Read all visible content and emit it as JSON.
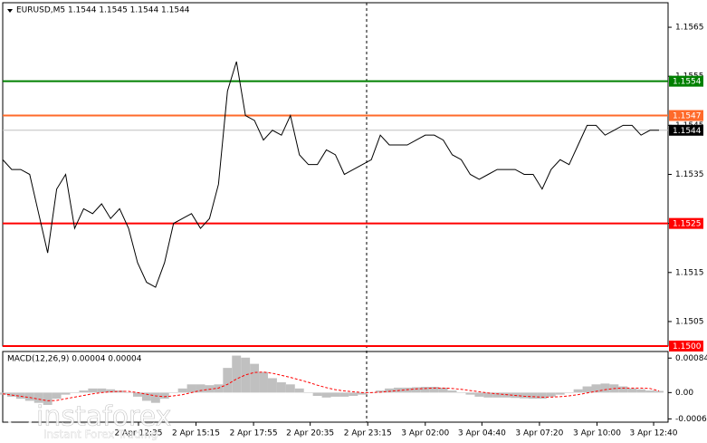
{
  "chart_data": [
    {
      "type": "line",
      "title": "EURUSD,M5  1.1544 1.1545 1.1544 1.1544",
      "series": [
        {
          "color": "#000000",
          "values": [
            1.1538,
            1.1536,
            1.1536,
            1.1535,
            1.1527,
            1.1519,
            1.1532,
            1.1535,
            1.1524,
            1.1528,
            1.1527,
            1.1529,
            1.1526,
            1.1528,
            1.1524,
            1.1517,
            1.1513,
            1.1512,
            1.1517,
            1.1525,
            1.1526,
            1.1527,
            1.1524,
            1.1526,
            1.1533,
            1.1552,
            1.1558,
            1.1547,
            1.1546,
            1.1542,
            1.1544,
            1.1543,
            1.1547,
            1.1539,
            1.1537,
            1.1537,
            1.154,
            1.1539,
            1.1535,
            1.1536,
            1.1537,
            1.1538,
            1.1543,
            1.1541,
            1.1541,
            1.1541,
            1.1542,
            1.1543,
            1.1543,
            1.1542,
            1.1539,
            1.1538,
            1.1535,
            1.1534,
            1.1535,
            1.1536,
            1.1536,
            1.1536,
            1.1535,
            1.1535,
            1.1532,
            1.1536,
            1.1538,
            1.1537,
            1.1541,
            1.1545,
            1.1545,
            1.1543,
            1.1544,
            1.1545,
            1.1545,
            1.1543,
            1.1544,
            1.1544
          ]
        }
      ],
      "xlim": [
        0,
        73
      ],
      "xticks": [
        {
          "value": 15.1,
          "label": "2 Apr 12:35"
        },
        {
          "value": 21.5,
          "label": "2 Apr 15:15"
        },
        {
          "value": 27.9,
          "label": "2 Apr 17:55"
        },
        {
          "value": 34.2,
          "label": "2 Apr 20:35"
        },
        {
          "value": 40.6,
          "label": "2 Apr 23:15"
        },
        {
          "value": 47,
          "label": "3 Apr 02:00"
        },
        {
          "value": 53.3,
          "label": "3 Apr 04:40"
        },
        {
          "value": 59.7,
          "label": "3 Apr 07:20"
        },
        {
          "value": 66.1,
          "label": "3 Apr 10:00"
        },
        {
          "value": 72.4,
          "label": "3 Apr 12:40"
        }
      ],
      "ylim": [
        1.15,
        1.157
      ],
      "yticks": [
        1.1565,
        1.1555,
        1.1545,
        1.1535,
        1.1525,
        1.1515,
        1.1505
      ],
      "levels": [
        {
          "value": 1.1554,
          "color": "#008000"
        },
        {
          "value": 1.1547,
          "color": "#ff6a2a"
        },
        {
          "value": 1.1525,
          "color": "#ff0000"
        },
        {
          "value": 1.15,
          "label": "1.1500",
          "color": "#ff0000"
        }
      ],
      "last_price": 1.1544
    },
    {
      "type": "macd",
      "title": "MACD(12,26,9) 0.00004 0.00004",
      "series": [
        {
          "type": "bar",
          "color": "#c0c0c0",
          "values": [
            -5e-05,
            -0.0001,
            -0.00015,
            -0.0002,
            -0.00025,
            -0.0003,
            -0.00015,
            -5e-05,
            0,
            5e-05,
            0.0001,
            0.0001,
            8e-05,
            5e-05,
            0,
            -0.0001,
            -0.0002,
            -0.00025,
            -0.00015,
            0,
            0.0001,
            0.0002,
            0.0002,
            0.00018,
            0.0002,
            0.0006,
            0.0009,
            0.00085,
            0.0007,
            0.0005,
            0.00035,
            0.00025,
            0.0002,
            0.0001,
            0,
            -8e-05,
            -0.00012,
            -0.0001,
            -0.0001,
            -8e-05,
            -5e-05,
            0,
            5e-05,
            0.0001,
            0.00012,
            0.00012,
            0.00013,
            0.00014,
            0.00014,
            0.00012,
            5e-05,
            0,
            -5e-05,
            -0.0001,
            -0.00012,
            -0.00012,
            -0.00012,
            -0.00013,
            -0.00014,
            -0.00015,
            -0.00015,
            -0.0001,
            -5e-05,
            0,
            8e-05,
            0.00015,
            0.0002,
            0.00022,
            0.0002,
            0.00015,
            0.0001,
            8e-05,
            5e-05,
            4e-05
          ]
        },
        {
          "type": "line",
          "color": "#ff0000",
          "dashed": true,
          "values": [
            -3e-05,
            -6e-05,
            -9e-05,
            -0.00012,
            -0.00016,
            -0.0002,
            -0.00019,
            -0.00015,
            -0.00011,
            -7e-05,
            -3e-05,
            0,
            2e-05,
            3e-05,
            3e-05,
            0,
            -4e-05,
            -8e-05,
            -0.0001,
            -8e-05,
            -5e-05,
            0,
            5e-05,
            8e-05,
            0.00011,
            0.0002,
            0.00033,
            0.00043,
            0.00049,
            0.0005,
            0.00047,
            0.00042,
            0.00037,
            0.00031,
            0.00025,
            0.00018,
            0.00012,
            7e-05,
            4e-05,
            2e-05,
            0,
            0,
            1e-05,
            3e-05,
            5e-05,
            7e-05,
            9e-05,
            0.0001,
            0.00011,
            0.00011,
            0.0001,
            8e-05,
            5e-05,
            2e-05,
            -1e-05,
            -3e-05,
            -5e-05,
            -7e-05,
            -9e-05,
            -0.0001,
            -0.00011,
            -0.00011,
            -0.0001,
            -8e-05,
            -5e-05,
            -1e-05,
            3e-05,
            7e-05,
            0.0001,
            0.00011,
            0.00011,
            0.00011,
            0.0001,
            4e-05
          ]
        }
      ],
      "xlim": [
        0,
        73
      ],
      "ylim": [
        -0.00072,
        0.001
      ],
      "yticks": [
        0.00084,
        {
          "value": 0,
          "label": "0.00"
        },
        -0.00064
      ]
    }
  ],
  "watermark": {
    "brand": "instaforex",
    "tagline": "Instant Forex Trading"
  }
}
